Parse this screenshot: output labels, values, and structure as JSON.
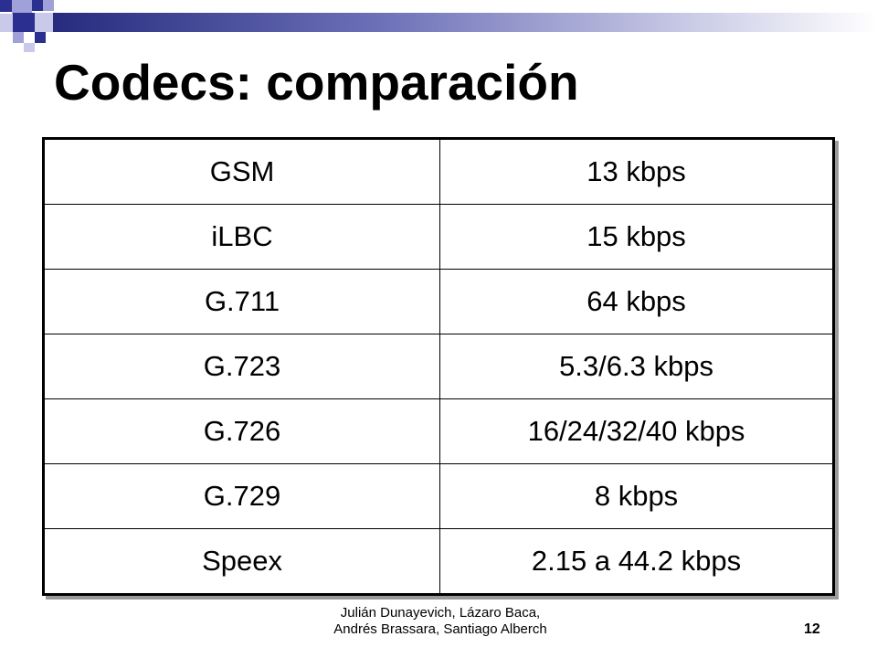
{
  "slide": {
    "title": "Codecs: comparación",
    "page_number": "12",
    "footer": {
      "line1": "Julián Dunayevich, Lázaro Baca,",
      "line2": "Andrés Brassara, Santiago Alberch"
    }
  },
  "table": {
    "rows": [
      {
        "codec": "GSM",
        "bitrate": "13 kbps"
      },
      {
        "codec": "iLBC",
        "bitrate": "15 kbps"
      },
      {
        "codec": "G.711",
        "bitrate": "64 kbps"
      },
      {
        "codec": "G.723",
        "bitrate": "5.3/6.3 kbps"
      },
      {
        "codec": "G.726",
        "bitrate": "16/24/32/40 kbps"
      },
      {
        "codec": "G.729",
        "bitrate": "8 kbps"
      },
      {
        "codec": "Speex",
        "bitrate": "2.15 a 44.2 kbps"
      }
    ]
  },
  "colors": {
    "accent_navy": "#2b2f8f",
    "accent_lavender": "#9fa1d8",
    "text": "#000000",
    "background": "#ffffff"
  }
}
